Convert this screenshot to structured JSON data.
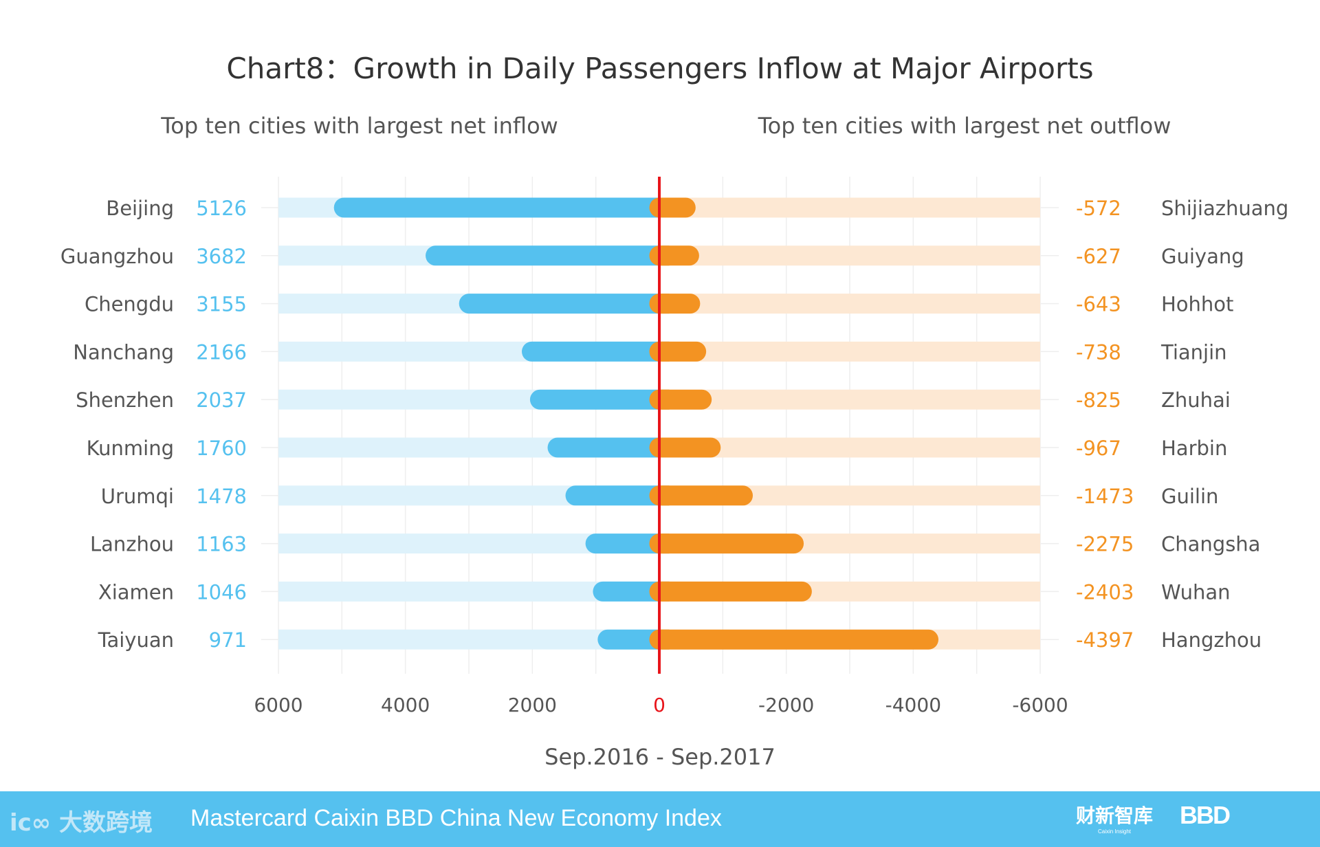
{
  "chart_data": {
    "type": "bar",
    "title": "Chart8：Growth in Daily Passengers Inflow at Major Airports",
    "subtitle_left": "Top ten cities with largest net inflow",
    "subtitle_right": "Top ten cities with largest net outflow",
    "xlabel": "Sep.2016 - Sep.2017",
    "xlim": [
      6000,
      -6000
    ],
    "x_ticks": [
      "6000",
      "4000",
      "2000",
      "0",
      "-2000",
      "-4000",
      "-6000"
    ],
    "x_tick_values": [
      6000,
      4000,
      2000,
      0,
      -2000,
      -4000,
      -6000
    ],
    "inflow": {
      "cities": [
        "Beijing",
        "Guangzhou",
        "Chengdu",
        "Nanchang",
        "Shenzhen",
        "Kunming",
        "Urumqi",
        "Lanzhou",
        "Xiamen",
        "Taiyuan"
      ],
      "values": [
        5126,
        3682,
        3155,
        2166,
        2037,
        1760,
        1478,
        1163,
        1046,
        971
      ],
      "color": "#55c1ef",
      "track_color": "#def2fb"
    },
    "outflow": {
      "cities": [
        "Shijiazhuang",
        "Guiyang",
        "Hohhot",
        "Tianjin",
        "Zhuhai",
        "Harbin",
        "Guilin",
        "Changsha",
        "Wuhan",
        "Hangzhou"
      ],
      "values": [
        -572,
        -627,
        -643,
        -738,
        -825,
        -967,
        -1473,
        -2275,
        -2403,
        -4397
      ],
      "color": "#f39322",
      "track_color": "#fde8d3"
    },
    "zero_line_color": "#e8151b"
  },
  "footer": {
    "title": "Mastercard Caixin BBD China New Economy Index",
    "logo_left": "大数跨境",
    "logo_caixin": "财新智库",
    "logo_caixin_sub": "Caixin Insight",
    "logo_bbd": "BBD"
  }
}
